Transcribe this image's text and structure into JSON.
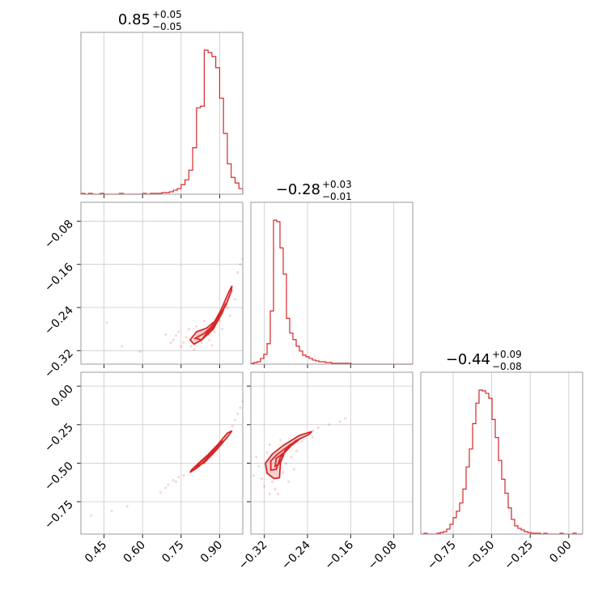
{
  "chart_data": {
    "type": "corner",
    "parameters": [
      {
        "title_value": "0.85",
        "title_upper": "+0.05",
        "title_lower": "−0.05",
        "range": [
          0.36,
          0.99
        ],
        "ticks": [
          0.45,
          0.6,
          0.75,
          0.9
        ],
        "tick_labels": [
          "0.45",
          "0.60",
          "0.75",
          "0.90"
        ],
        "hist_bins": [
          0.36,
          0.375,
          0.39,
          0.405,
          0.42,
          0.435,
          0.45,
          0.465,
          0.48,
          0.495,
          0.51,
          0.525,
          0.54,
          0.555,
          0.57,
          0.585,
          0.6,
          0.615,
          0.63,
          0.645,
          0.66,
          0.675,
          0.69,
          0.705,
          0.72,
          0.735,
          0.75,
          0.765,
          0.78,
          0.795,
          0.81,
          0.825,
          0.84,
          0.855,
          0.87,
          0.885,
          0.9,
          0.915,
          0.93,
          0.945,
          0.96,
          0.975,
          0.99
        ],
        "hist_counts": [
          1,
          0,
          1,
          0,
          0,
          1,
          0,
          0,
          0,
          0,
          1,
          0,
          0,
          0,
          0,
          0,
          1,
          0,
          1,
          1,
          1,
          2,
          2,
          3,
          5,
          7,
          12,
          18,
          30,
          58,
          108,
          110,
          180,
          177,
          172,
          158,
          120,
          76,
          38,
          21,
          14,
          7
        ]
      },
      {
        "title_value": "−0.28",
        "title_upper": "+0.03",
        "title_lower": "−0.01",
        "range": [
          -0.345,
          -0.045
        ],
        "ticks": [
          -0.32,
          -0.24,
          -0.16,
          -0.08
        ],
        "tick_labels": [
          "−0.32",
          "−0.24",
          "−0.16",
          "−0.08"
        ],
        "hist_bins": [
          -0.345,
          -0.339,
          -0.333,
          -0.327,
          -0.321,
          -0.315,
          -0.309,
          -0.303,
          -0.297,
          -0.291,
          -0.285,
          -0.279,
          -0.273,
          -0.267,
          -0.261,
          -0.255,
          -0.249,
          -0.243,
          -0.237,
          -0.231,
          -0.225,
          -0.219,
          -0.213,
          -0.207,
          -0.201,
          -0.195,
          -0.189,
          -0.183,
          -0.177,
          -0.171,
          -0.165,
          -0.159,
          -0.153,
          -0.147,
          -0.141,
          -0.135,
          -0.129,
          -0.123,
          -0.117,
          -0.111,
          -0.105,
          -0.099,
          -0.093,
          -0.087,
          -0.081,
          -0.075,
          -0.069,
          -0.063,
          -0.057,
          -0.051,
          -0.045
        ],
        "hist_counts": [
          1,
          2,
          3,
          7,
          12,
          25,
          65,
          176,
          174,
          142,
          110,
          56,
          38,
          30,
          22,
          16,
          11,
          9,
          7,
          5,
          4,
          3,
          3,
          2,
          2,
          1,
          1,
          1,
          1,
          1,
          1,
          0,
          0,
          0,
          0,
          0,
          0,
          0,
          0,
          0,
          0,
          0,
          0,
          0,
          0,
          0,
          0,
          0,
          0,
          0
        ]
      },
      {
        "title_value": "−0.44",
        "title_upper": "+0.09",
        "title_lower": "−0.08",
        "range": [
          -0.96,
          0.09
        ],
        "ticks": [
          -0.75,
          -0.5,
          -0.25,
          0.0
        ],
        "tick_labels": [
          "−0.75",
          "−0.50",
          "−0.25",
          "0.00"
        ],
        "hist_bins": [
          -0.96,
          -0.939,
          -0.918,
          -0.897,
          -0.876,
          -0.855,
          -0.834,
          -0.813,
          -0.792,
          -0.771,
          -0.75,
          -0.729,
          -0.708,
          -0.687,
          -0.666,
          -0.645,
          -0.624,
          -0.603,
          -0.582,
          -0.561,
          -0.54,
          -0.519,
          -0.498,
          -0.477,
          -0.456,
          -0.435,
          -0.414,
          -0.393,
          -0.372,
          -0.351,
          -0.33,
          -0.309,
          -0.288,
          -0.267,
          -0.246,
          -0.225,
          -0.204,
          -0.183,
          -0.162,
          -0.141,
          -0.12,
          -0.099,
          -0.078,
          -0.057,
          -0.036,
          -0.015,
          0.006,
          0.027,
          0.048,
          0.069,
          0.09
        ],
        "hist_counts": [
          0,
          1,
          0,
          0,
          0,
          1,
          2,
          3,
          6,
          12,
          20,
          28,
          38,
          55,
          82,
          104,
          135,
          160,
          176,
          175,
          172,
          166,
          140,
          118,
          90,
          67,
          50,
          32,
          18,
          10,
          7,
          5,
          3,
          2,
          1,
          1,
          1,
          0,
          1,
          0,
          0,
          0,
          0,
          1,
          0,
          0,
          0,
          1,
          0,
          0
        ]
      }
    ],
    "pairs": [
      {
        "x_param": 0,
        "y_param": 1,
        "contours": [
          [
            [
              0.785,
              -0.3
            ],
            [
              0.81,
              -0.285
            ],
            [
              0.85,
              -0.278
            ],
            [
              0.89,
              -0.262
            ],
            [
              0.925,
              -0.235
            ],
            [
              0.945,
              -0.21
            ],
            [
              0.948,
              -0.2
            ],
            [
              0.935,
              -0.212
            ],
            [
              0.905,
              -0.245
            ],
            [
              0.87,
              -0.275
            ],
            [
              0.83,
              -0.3
            ],
            [
              0.8,
              -0.308
            ]
          ],
          [
            [
              0.805,
              -0.297
            ],
            [
              0.84,
              -0.288
            ],
            [
              0.88,
              -0.27
            ],
            [
              0.912,
              -0.245
            ],
            [
              0.925,
              -0.232
            ],
            [
              0.91,
              -0.25
            ],
            [
              0.875,
              -0.28
            ],
            [
              0.83,
              -0.3
            ]
          ],
          [
            [
              0.84,
              -0.293
            ],
            [
              0.87,
              -0.282
            ],
            [
              0.895,
              -0.262
            ],
            [
              0.885,
              -0.268
            ],
            [
              0.855,
              -0.29
            ]
          ]
        ],
        "points": [
          [
            0.52,
            -0.312
          ],
          [
            0.46,
            -0.268
          ],
          [
            0.59,
            -0.322
          ],
          [
            0.69,
            -0.29
          ],
          [
            0.72,
            -0.3
          ],
          [
            0.74,
            -0.285
          ],
          [
            0.75,
            -0.312
          ],
          [
            0.77,
            -0.295
          ],
          [
            0.78,
            -0.28
          ],
          [
            0.8,
            -0.318
          ],
          [
            0.82,
            -0.292
          ],
          [
            0.86,
            -0.3
          ],
          [
            0.88,
            -0.285
          ],
          [
            0.9,
            -0.265
          ],
          [
            0.93,
            -0.24
          ],
          [
            0.95,
            -0.21
          ],
          [
            0.97,
            -0.175
          ],
          [
            0.98,
            -0.16
          ],
          [
            0.99,
            -0.15
          ],
          [
            0.76,
            -0.305
          ],
          [
            0.79,
            -0.312
          ],
          [
            0.83,
            -0.305
          ],
          [
            0.73,
            -0.292
          ],
          [
            0.71,
            -0.305
          ],
          [
            0.96,
            -0.225
          ],
          [
            0.94,
            -0.255
          ],
          [
            0.91,
            -0.28
          ],
          [
            0.87,
            -0.31
          ],
          [
            0.81,
            -0.275
          ],
          [
            0.84,
            -0.265
          ]
        ]
      },
      {
        "x_param": 0,
        "y_param": 2,
        "contours": [
          [
            [
              0.785,
              -0.56
            ],
            [
              0.82,
              -0.52
            ],
            [
              0.86,
              -0.455
            ],
            [
              0.9,
              -0.39
            ],
            [
              0.935,
              -0.32
            ],
            [
              0.948,
              -0.29
            ],
            [
              0.93,
              -0.305
            ],
            [
              0.895,
              -0.375
            ],
            [
              0.855,
              -0.445
            ],
            [
              0.815,
              -0.505
            ],
            [
              0.79,
              -0.545
            ]
          ],
          [
            [
              0.8,
              -0.545
            ],
            [
              0.84,
              -0.49
            ],
            [
              0.88,
              -0.425
            ],
            [
              0.915,
              -0.355
            ],
            [
              0.905,
              -0.365
            ],
            [
              0.865,
              -0.435
            ],
            [
              0.825,
              -0.495
            ]
          ],
          [
            [
              0.835,
              -0.505
            ],
            [
              0.87,
              -0.445
            ],
            [
              0.895,
              -0.4
            ],
            [
              0.88,
              -0.42
            ],
            [
              0.85,
              -0.47
            ]
          ]
        ],
        "points": [
          [
            0.4,
            -0.84
          ],
          [
            0.48,
            -0.81
          ],
          [
            0.54,
            -0.78
          ],
          [
            0.67,
            -0.69
          ],
          [
            0.7,
            -0.64
          ],
          [
            0.72,
            -0.61
          ],
          [
            0.74,
            -0.59
          ],
          [
            0.76,
            -0.58
          ],
          [
            0.95,
            -0.26
          ],
          [
            0.97,
            -0.18
          ],
          [
            0.98,
            -0.14
          ],
          [
            0.99,
            -0.1
          ],
          [
            0.96,
            -0.22
          ],
          [
            0.73,
            -0.62
          ],
          [
            0.69,
            -0.66
          ]
        ]
      },
      {
        "x_param": 1,
        "y_param": 2,
        "contours": [
          [
            [
              -0.315,
              -0.565
            ],
            [
              -0.318,
              -0.5
            ],
            [
              -0.305,
              -0.44
            ],
            [
              -0.285,
              -0.385
            ],
            [
              -0.255,
              -0.32
            ],
            [
              -0.232,
              -0.295
            ],
            [
              -0.238,
              -0.315
            ],
            [
              -0.262,
              -0.355
            ],
            [
              -0.282,
              -0.42
            ],
            [
              -0.29,
              -0.495
            ],
            [
              -0.292,
              -0.595
            ],
            [
              -0.302,
              -0.6
            ]
          ],
          [
            [
              -0.308,
              -0.545
            ],
            [
              -0.308,
              -0.485
            ],
            [
              -0.295,
              -0.44
            ],
            [
              -0.27,
              -0.375
            ],
            [
              -0.255,
              -0.345
            ],
            [
              -0.27,
              -0.385
            ],
            [
              -0.29,
              -0.46
            ],
            [
              -0.298,
              -0.54
            ]
          ],
          [
            [
              -0.3,
              -0.52
            ],
            [
              -0.298,
              -0.47
            ],
            [
              -0.283,
              -0.43
            ],
            [
              -0.285,
              -0.455
            ],
            [
              -0.293,
              -0.505
            ]
          ]
        ],
        "points": [
          [
            -0.335,
            -0.46
          ],
          [
            -0.33,
            -0.52
          ],
          [
            -0.325,
            -0.6
          ],
          [
            -0.32,
            -0.65
          ],
          [
            -0.315,
            -0.43
          ],
          [
            -0.305,
            -0.62
          ],
          [
            -0.3,
            -0.67
          ],
          [
            -0.295,
            -0.7
          ],
          [
            -0.285,
            -0.56
          ],
          [
            -0.28,
            -0.5
          ],
          [
            -0.27,
            -0.46
          ],
          [
            -0.26,
            -0.42
          ],
          [
            -0.25,
            -0.36
          ],
          [
            -0.23,
            -0.29
          ],
          [
            -0.22,
            -0.27
          ],
          [
            -0.2,
            -0.25
          ],
          [
            -0.18,
            -0.23
          ],
          [
            -0.17,
            -0.21
          ],
          [
            -0.31,
            -0.38
          ],
          [
            -0.34,
            -0.58
          ],
          [
            -0.275,
            -0.62
          ],
          [
            -0.265,
            -0.54
          ],
          [
            -0.29,
            -0.35
          ],
          [
            -0.23,
            -0.33
          ],
          [
            -0.31,
            -0.7
          ]
        ]
      }
    ],
    "grid": true
  }
}
